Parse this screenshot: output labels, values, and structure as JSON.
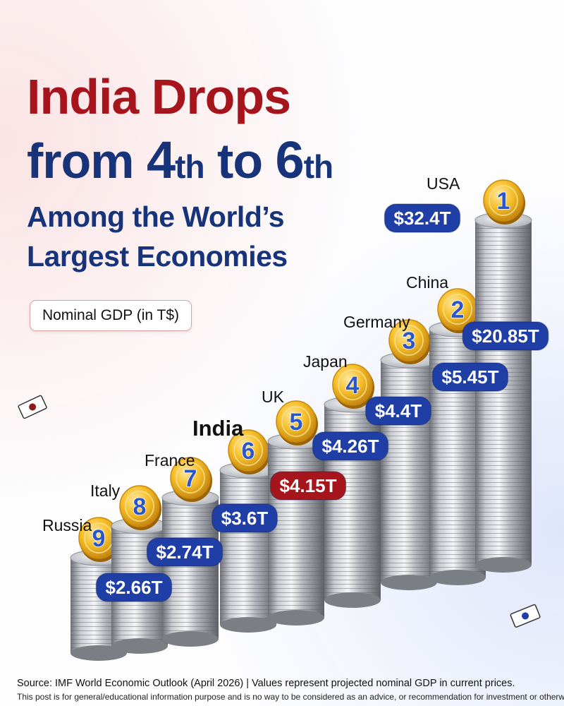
{
  "headline": {
    "line1": "India Drops",
    "line2_pre": "from ",
    "line2_num1": "4",
    "line2_suf1": "th",
    "line2_mid": " to ",
    "line2_num2": "6",
    "line2_suf2": "th",
    "line3": "Among the World’s",
    "line4": "Largest Economies"
  },
  "unit_pill": "Nominal GDP (in T$)",
  "colors": {
    "title_red": "#a5151b",
    "title_blue": "#17337a",
    "label_blue": "#1f3fa6",
    "label_red": "#a5151b",
    "coin_gold": "#f2b21c",
    "rank_blue": "#2a56c9"
  },
  "chart_data": {
    "type": "bar",
    "categories": [
      "Russia",
      "Italy",
      "France",
      "India",
      "UK",
      "Japan",
      "Germany",
      "China",
      "USA"
    ],
    "values": [
      2.66,
      2.74,
      3.6,
      4.15,
      4.26,
      4.4,
      5.45,
      20.85,
      32.4
    ],
    "value_labels": [
      "$2.66T",
      "$2.74T",
      "$3.6T",
      "$4.15T",
      "$4.26T",
      "$4.4T",
      "$5.45T",
      "$20.85T",
      "$32.4T"
    ],
    "ranks": [
      "9",
      "8",
      "7",
      "6",
      "5",
      "4",
      "3",
      "2",
      "1"
    ],
    "highlight": "India",
    "style": "stacked silver coins"
  },
  "footer": {
    "source": "Source: IMF World Economic Outlook (April 2026) | Values represent projected nominal GDP in current prices.",
    "disclaimer": "This post is for general/educational information purpose and is no way to be considered as an advice, or recommendation for investment or otherwise."
  }
}
